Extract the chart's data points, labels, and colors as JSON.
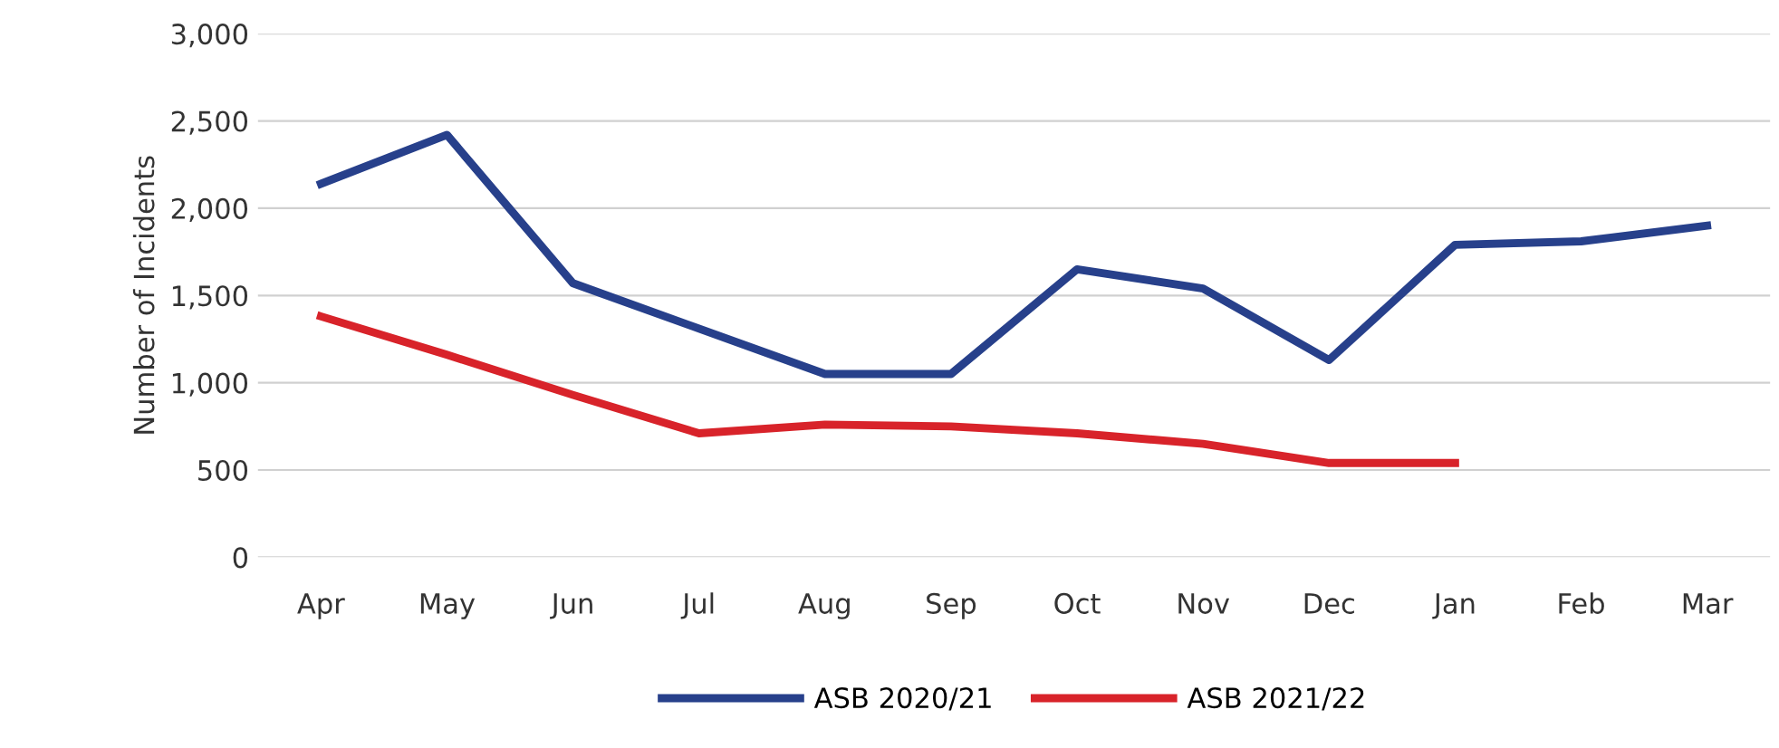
{
  "chart_data": {
    "type": "line",
    "ylabel": "Number of Incidents",
    "categories": [
      "Apr",
      "May",
      "Jun",
      "Jul",
      "Aug",
      "Sep",
      "Oct",
      "Nov",
      "Dec",
      "Jan",
      "Feb",
      "Mar"
    ],
    "series": [
      {
        "name": "ASB 2020/21",
        "color": "#27408b",
        "values": [
          2140,
          2420,
          1570,
          1310,
          1050,
          1050,
          1650,
          1540,
          1130,
          1790,
          1810,
          1900
        ]
      },
      {
        "name": "ASB 2021/22",
        "color": "#d8232a",
        "values": [
          1380,
          1160,
          930,
          710,
          760,
          750,
          710,
          650,
          540,
          540,
          null,
          null
        ]
      }
    ],
    "ylim": [
      0,
      3000
    ],
    "yticks": [
      {
        "value": 0,
        "label": "0"
      },
      {
        "value": 500,
        "label": "500"
      },
      {
        "value": 1000,
        "label": "1,000"
      },
      {
        "value": 1500,
        "label": "1,500"
      },
      {
        "value": 2000,
        "label": "2,000"
      },
      {
        "value": 2500,
        "label": "2,500"
      },
      {
        "value": 3000,
        "label": "3,000"
      }
    ],
    "grid": "y",
    "legend": "bottom",
    "marker": "none",
    "line_style": "solid"
  }
}
